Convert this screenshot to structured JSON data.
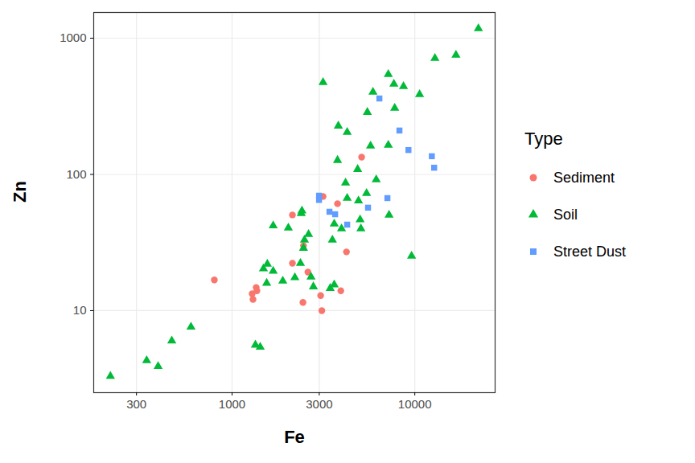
{
  "chart_data": {
    "type": "scatter",
    "x_label": "Fe",
    "y_label": "Zn",
    "log": true,
    "grid": true,
    "legend": "right",
    "legend_title": "Type",
    "xlim": [
      175,
      27500
    ],
    "ylim": [
      2.5,
      1545
    ],
    "xticks": [
      300,
      1000,
      3000,
      10000
    ],
    "yticks": [
      10,
      100,
      1000
    ],
    "series": [
      {
        "name": "Sediment",
        "color": "#F8766D",
        "marker": "circle",
        "x": [
          800,
          1288,
          1355,
          1368,
          1302,
          2140,
          2140,
          2443,
          2460,
          2600,
          3053,
          3100,
          3147,
          3776,
          3936,
          4227,
          5117
        ],
        "values": [
          16.8,
          13.3,
          14.8,
          14,
          12.1,
          50.4,
          22.3,
          11.5,
          30,
          19.2,
          12.9,
          10,
          68.9,
          61,
          14,
          27,
          134
        ]
      },
      {
        "name": "Soil",
        "color": "#00BA38",
        "marker": "triangle",
        "x": [
          216,
          341,
          394,
          468,
          596,
          1342,
          1426,
          1547,
          1485,
          1560,
          1679,
          1679,
          1895,
          2032,
          2206,
          2367,
          2390,
          2412,
          2490,
          2460,
          2622,
          2704,
          2786,
          3147,
          3444,
          3623,
          3623,
          3540,
          3776,
          3815,
          3972,
          4178,
          4266,
          4266,
          4918,
          4866,
          5070,
          5020,
          5445,
          5500,
          5727,
          5902,
          6150,
          7160,
          7230,
          7160,
          7680,
          7760,
          8670,
          9600,
          10620,
          12880,
          16790,
          22280
        ],
        "values": [
          3.3,
          4.3,
          3.9,
          6.0,
          7.6,
          5.6,
          5.4,
          15.9,
          20.3,
          22,
          19.5,
          42,
          16.5,
          40.5,
          17.5,
          22.3,
          51.8,
          54,
          33,
          28.8,
          36.3,
          17.7,
          15,
          474,
          14.6,
          15.5,
          43.4,
          33,
          127,
          227,
          40,
          86.7,
          204,
          67,
          64,
          109,
          40,
          46.5,
          72.6,
          286,
          162,
          403,
          91.6,
          164,
          50.4,
          543,
          461,
          307,
          443,
          25.2,
          386,
          713,
          752,
          1178
        ]
      },
      {
        "name": "Street Dust",
        "color": "#619CFF",
        "marker": "square",
        "x": [
          2992,
          2992,
          3412,
          3664,
          4266,
          5546,
          6400,
          7080,
          8240,
          9230,
          12390,
          12760
        ],
        "values": [
          69.8,
          65,
          53.2,
          51,
          42.8,
          57,
          361,
          67,
          210,
          151,
          136,
          112
        ]
      }
    ]
  }
}
